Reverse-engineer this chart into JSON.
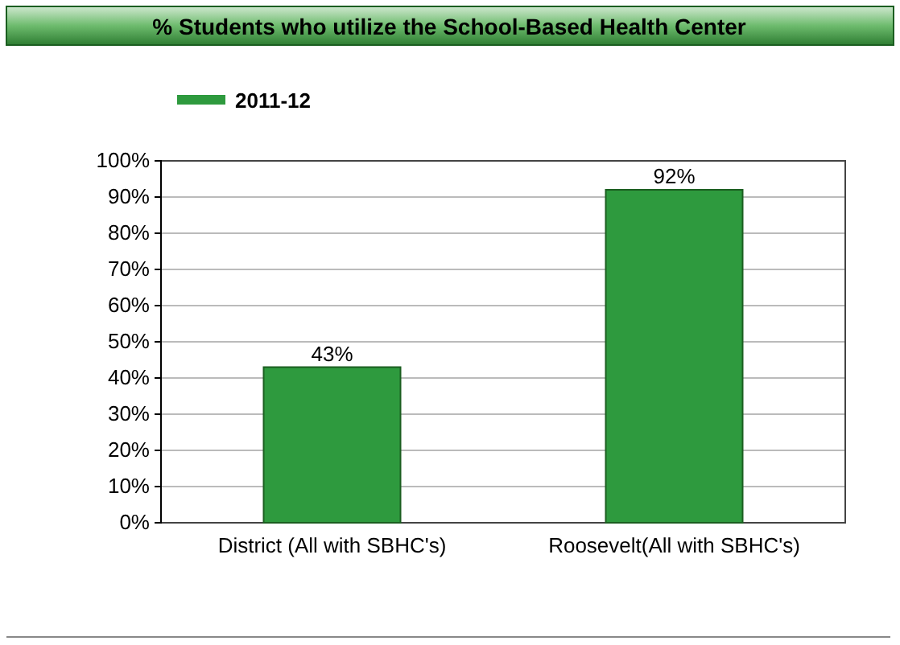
{
  "chart_data": {
    "type": "bar",
    "title": "% Students who utilize the School-Based Health Center",
    "categories": [
      "District (All with SBHC's)",
      "Roosevelt(All with SBHC's)"
    ],
    "series": [
      {
        "name": "2011-12",
        "color": "#2e9a3e",
        "values": [
          43,
          92
        ]
      }
    ],
    "value_labels": [
      "43%",
      "92%"
    ],
    "ylim": [
      0,
      100
    ],
    "yticks": [
      {
        "value": 0,
        "label": "0%"
      },
      {
        "value": 10,
        "label": "10%"
      },
      {
        "value": 20,
        "label": "20%"
      },
      {
        "value": 30,
        "label": "30%"
      },
      {
        "value": 40,
        "label": "40%"
      },
      {
        "value": 50,
        "label": "50%"
      },
      {
        "value": 60,
        "label": "60%"
      },
      {
        "value": 70,
        "label": "70%"
      },
      {
        "value": 80,
        "label": "80%"
      },
      {
        "value": 90,
        "label": "90%"
      },
      {
        "value": 100,
        "label": "100%"
      }
    ],
    "grid": "y",
    "legend": "top left"
  }
}
